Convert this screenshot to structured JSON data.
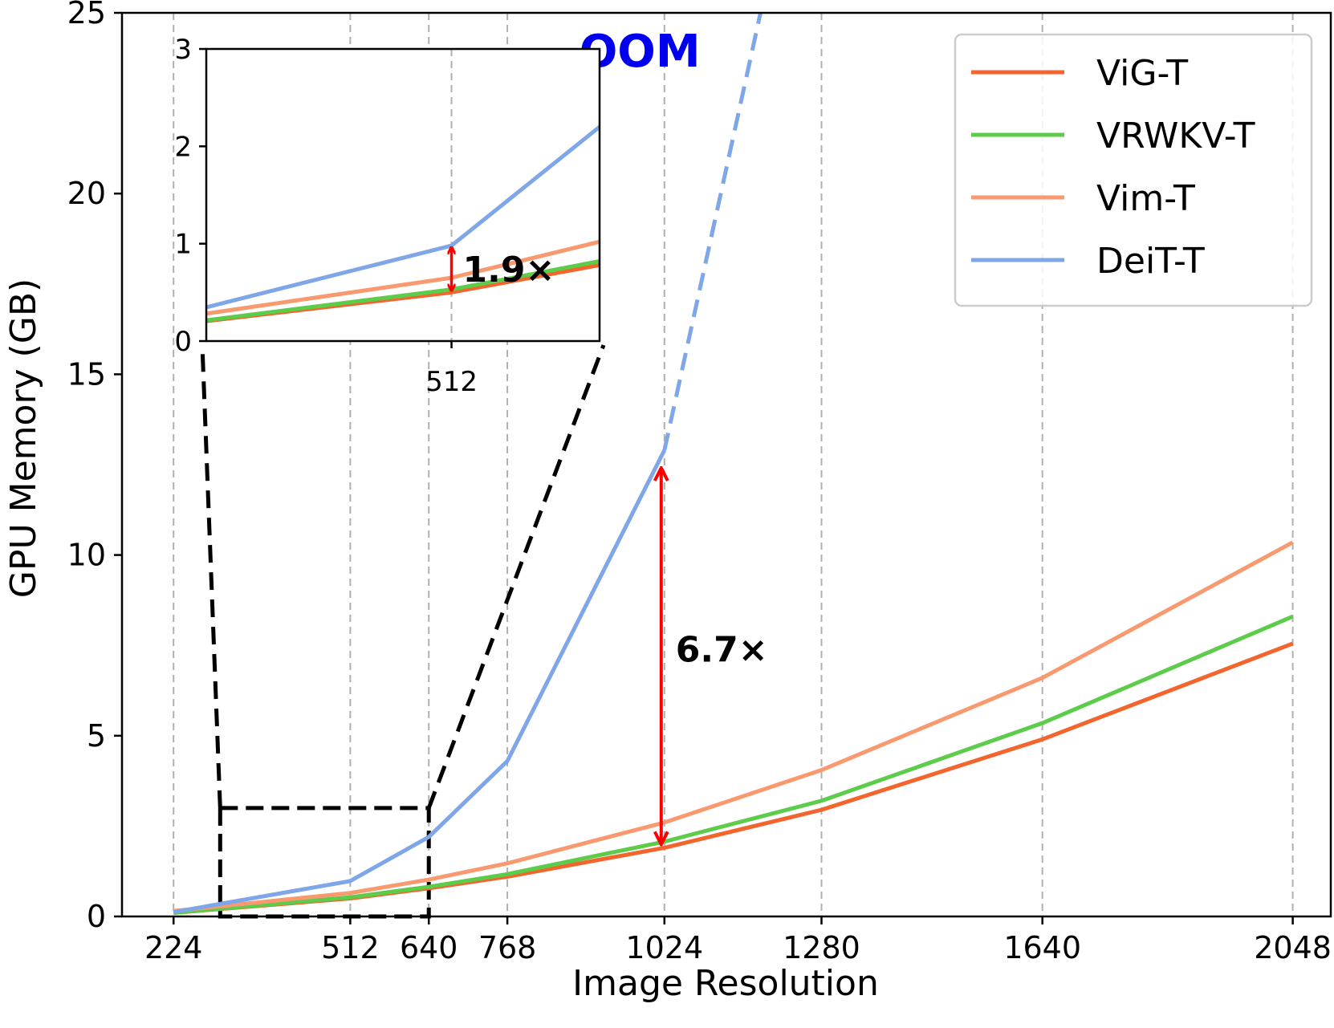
{
  "colors": {
    "ViG-T": "#f4652e",
    "VRWKV-T": "#5ccc4a",
    "Vim-T": "#f9996f",
    "DeiT-T": "#7ea6e8",
    "arrow": "#ff0000",
    "oom": "#0000ee"
  },
  "chart_data": {
    "type": "line",
    "title": "",
    "xlabel": "Image Resolution",
    "ylabel": "GPU Memory (GB)",
    "xlim": [
      140,
      2110
    ],
    "ylim": [
      0,
      25
    ],
    "xticks": [
      224,
      512,
      640,
      768,
      1024,
      1280,
      1640,
      2048
    ],
    "xtick_labels": [
      "224",
      "512",
      "640",
      "768",
      "1024",
      "1280",
      "1640",
      "2048"
    ],
    "yticks": [
      0,
      5,
      10,
      15,
      20,
      25
    ],
    "ytick_labels": [
      "0",
      "5",
      "10",
      "15",
      "20",
      "25"
    ],
    "grid": "vertical dashed",
    "legend_position": "top-right",
    "series": [
      {
        "name": "ViG-T",
        "x": [
          224,
          512,
          640,
          768,
          1024,
          1280,
          1640,
          2048
        ],
        "values": [
          0.1,
          0.5,
          0.78,
          1.1,
          1.9,
          2.95,
          4.9,
          7.55
        ]
      },
      {
        "name": "VRWKV-T",
        "x": [
          224,
          512,
          640,
          768,
          1024,
          1280,
          1640,
          2048
        ],
        "values": [
          0.1,
          0.53,
          0.82,
          1.17,
          2.07,
          3.2,
          5.35,
          8.3
        ]
      },
      {
        "name": "Vim-T",
        "x": [
          224,
          512,
          640,
          768,
          1024,
          1280,
          1640,
          2048
        ],
        "values": [
          0.15,
          0.65,
          1.02,
          1.47,
          2.6,
          4.05,
          6.6,
          10.35
        ]
      },
      {
        "name": "DeiT-T",
        "x": [
          224,
          512,
          640,
          768,
          1024
        ],
        "values": [
          0.12,
          0.98,
          2.2,
          4.3,
          12.9
        ],
        "oom_extension": {
          "x": [
            1024,
            1200
          ],
          "values": [
            12.9,
            26.5
          ]
        }
      }
    ],
    "annotations": [
      {
        "text": "OOM",
        "x": 1190,
        "y": 24.0
      },
      {
        "text": "6.7×",
        "x": 1024,
        "from": 1.9,
        "to": 12.9
      },
      {
        "text": "1.9×",
        "x": 512,
        "from": 0.5,
        "to": 0.98,
        "in_inset": true
      }
    ],
    "zoom_box": {
      "xlim": [
        300,
        640
      ],
      "ylim": [
        0,
        3
      ]
    },
    "inset": {
      "xlim": [
        300,
        640
      ],
      "ylim": [
        0,
        3
      ],
      "xticks": [
        512
      ],
      "xtick_labels": [
        "512"
      ],
      "yticks": [
        0,
        1,
        2,
        3
      ],
      "ytick_labels": [
        "0",
        "1",
        "2",
        "3"
      ]
    }
  }
}
